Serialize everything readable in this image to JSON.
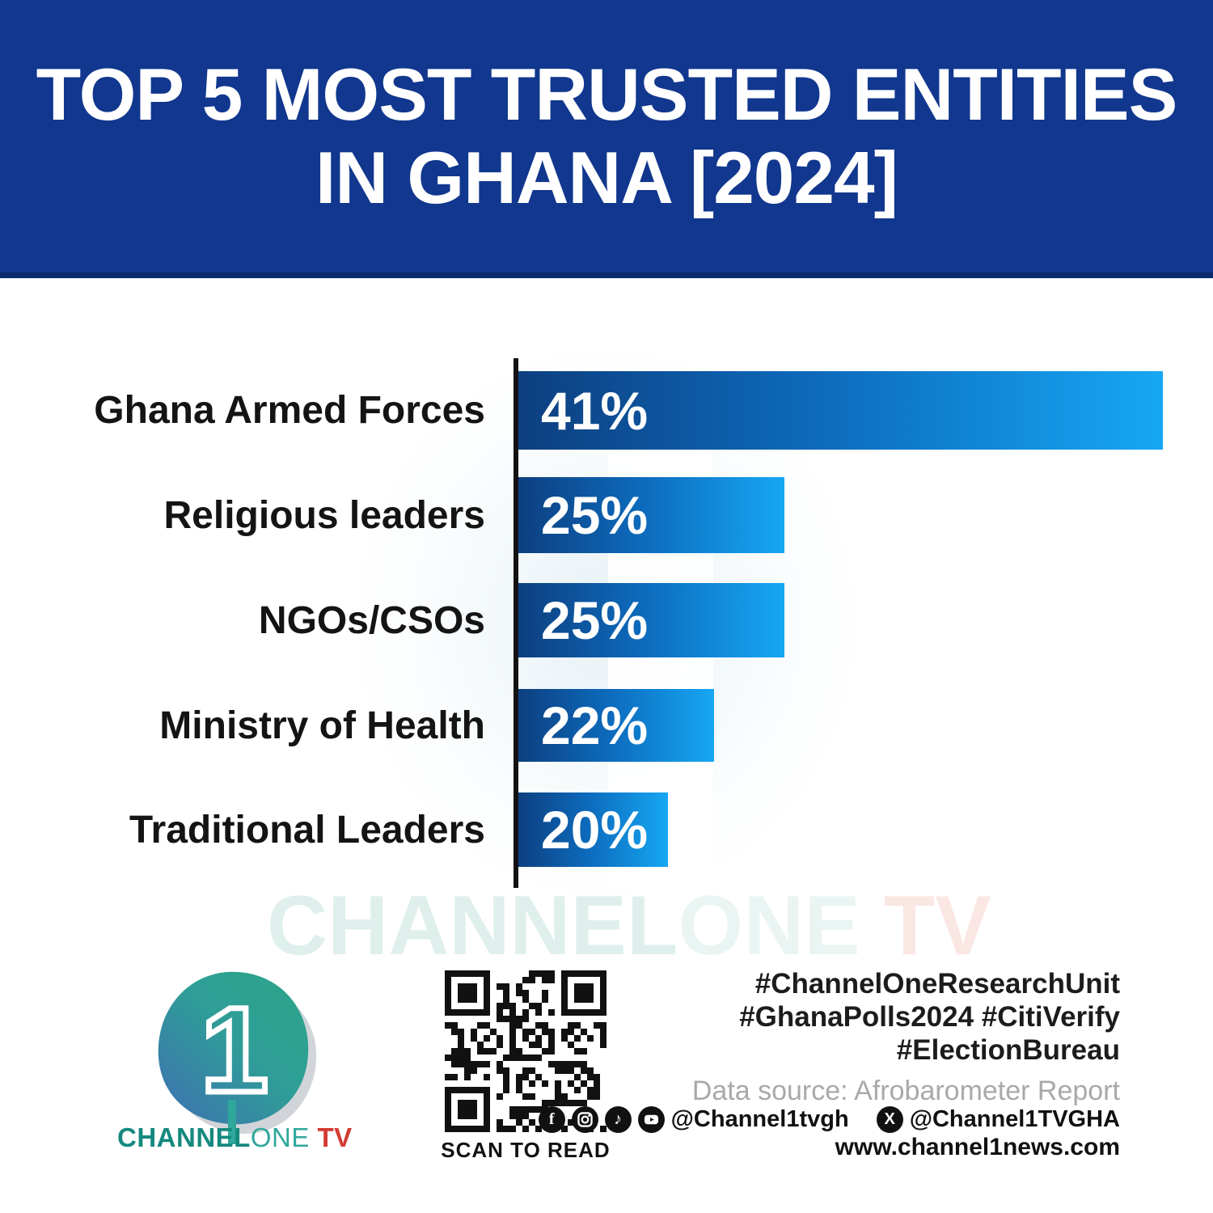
{
  "header": {
    "title_line1": "TOP 5 MOST TRUSTED ENTITIES",
    "title_line2": "IN GHANA [2024]",
    "bg_color": "#11378e",
    "text_color": "#ffffff"
  },
  "chart_data": {
    "type": "bar",
    "orientation": "horizontal",
    "title": "Top 5 Most Trusted Entities in Ghana [2024]",
    "categories": [
      "Ghana Armed Forces",
      "Religious leaders",
      "NGOs/CSOs",
      "Ministry of Health",
      "Traditional Leaders"
    ],
    "values": [
      41,
      25,
      25,
      22,
      20
    ],
    "value_labels": [
      "41%",
      "25%",
      "25%",
      "22%",
      "20%"
    ],
    "xlabel": "",
    "ylabel": "",
    "legend": false,
    "grid": false,
    "bar_color_start": "#0d3f80",
    "bar_color_end": "#16a7f3",
    "axis_color": "#121212",
    "rows": [
      {
        "label": "Ghana Armed Forces",
        "value": 41,
        "value_label": "41%",
        "bar_style": "top:459px;width:797px;height:97px",
        "label_style": "top:459px;height:97px"
      },
      {
        "label": "Religious leaders",
        "value": 25,
        "value_label": "25%",
        "bar_style": "top:590px;width:329px;height:94px",
        "label_style": "top:590px;height:94px"
      },
      {
        "label": "NGOs/CSOs",
        "value": 25,
        "value_label": "25%",
        "bar_style": "top:721px;width:329px;height:92px",
        "label_style": "top:721px;height:92px"
      },
      {
        "label": "Ministry of Health",
        "value": 22,
        "value_label": "22%",
        "bar_style": "top:852px;width:242px;height:90px",
        "label_style": "top:852px;height:90px"
      },
      {
        "label": "Traditional Leaders",
        "value": 20,
        "value_label": "20%",
        "bar_style": "top:980px;width:185px;height:92px",
        "label_style": "top:980px;height:92px"
      }
    ]
  },
  "watermark": {
    "part1": "CHANNEL",
    "part2": "ONE",
    "part3": " TV"
  },
  "footer": {
    "logo": {
      "part1": "CHANNEL",
      "part2": "ONE",
      "part3": " TV"
    },
    "qr_label": "SCAN TO READ",
    "hashtags_line1": "#ChannelOneResearchUnit",
    "hashtags_line2": "#GhanaPolls2024 #CitiVerify",
    "hashtags_line3": "#ElectionBureau",
    "data_source": "Data source: Afrobarometer Report",
    "social_handle_main": "@Channel1tvgh",
    "social_handle_x": "@Channel1TVGHA",
    "website": "www.channel1news.com",
    "social_icons": [
      "facebook-icon",
      "instagram-icon",
      "tiktok-icon",
      "youtube-icon",
      "x-icon"
    ]
  }
}
